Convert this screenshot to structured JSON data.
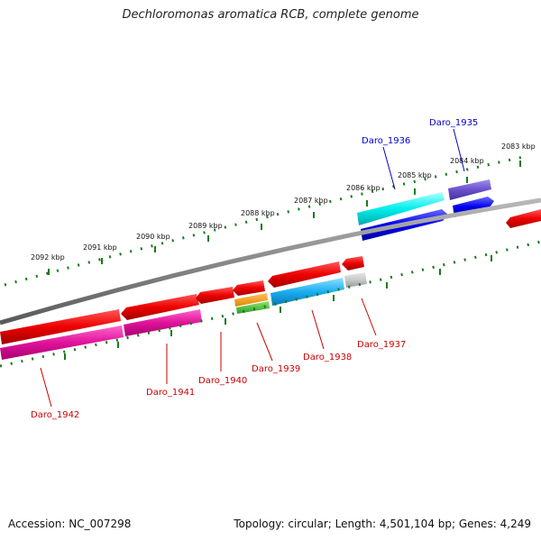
{
  "title": "Dechloromonas aromatica RCB, complete genome",
  "footer": {
    "accession": "Accession: NC_007298",
    "summary": "Topology: circular; Length: 4,501,104 bp; Genes: 4,249"
  },
  "colors": {
    "backbone": "#8a8a8a",
    "tick": "#1a7a1a",
    "forward_label": "#0000cc",
    "reverse_label": "#cc0000"
  },
  "kbp_labels": [
    "2092 kbp",
    "2091 kbp",
    "2090 kbp",
    "2089 kbp",
    "2088 kbp",
    "2087 kbp",
    "2086 kbp",
    "2085 kbp",
    "2084 kbp",
    "2083 kbp"
  ],
  "gene_labels": [
    {
      "text": "Daro_1935",
      "strand": "forward"
    },
    {
      "text": "Daro_1936",
      "strand": "forward"
    },
    {
      "text": "Daro_1937",
      "strand": "reverse"
    },
    {
      "text": "Daro_1938",
      "strand": "reverse"
    },
    {
      "text": "Daro_1939",
      "strand": "reverse"
    },
    {
      "text": "Daro_1940",
      "strand": "reverse"
    },
    {
      "text": "Daro_1941",
      "strand": "reverse"
    },
    {
      "text": "Daro_1942",
      "strand": "reverse"
    }
  ]
}
